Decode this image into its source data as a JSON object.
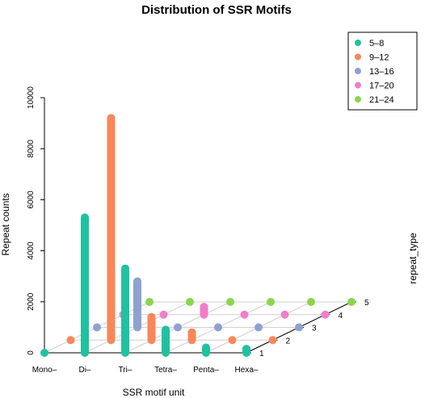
{
  "chart_data": {
    "type": "scatter3d",
    "title": "Distribution of SSR Motifs",
    "xlabel": "SSR motif unit",
    "ylabel": "Repeat counts",
    "zlabel": "repeat_type",
    "categories": [
      "Mono–",
      "Di–",
      "Tri–",
      "Tetra–",
      "Penta–",
      "Hexa–"
    ],
    "y_ticks": [
      "0",
      "2000",
      "4000",
      "6000",
      "8000",
      "10000"
    ],
    "z_ticks": [
      "1",
      "2",
      "3",
      "4",
      "5"
    ],
    "ylim": [
      0,
      10000
    ],
    "series": [
      {
        "name": "5–8",
        "color": "#1fc2a0",
        "depth": 1,
        "values": [
          0,
          5300,
          3300,
          900,
          200,
          150
        ]
      },
      {
        "name": "9–12",
        "color": "#f8875a",
        "depth": 2,
        "values": [
          0,
          8700,
          900,
          300,
          0,
          0
        ]
      },
      {
        "name": "13–16",
        "color": "#8ea2cf",
        "depth": 3,
        "values": [
          0,
          1800,
          0,
          0,
          0,
          0
        ]
      },
      {
        "name": "17–20",
        "color": "#f07ec8",
        "depth": 4,
        "values": [
          0,
          0,
          300,
          0,
          0,
          0
        ]
      },
      {
        "name": "21–24",
        "color": "#8ad64a",
        "depth": 5,
        "values": [
          0,
          0,
          0,
          0,
          0,
          0
        ]
      }
    ],
    "legend_position": "top-right",
    "grid": true
  }
}
